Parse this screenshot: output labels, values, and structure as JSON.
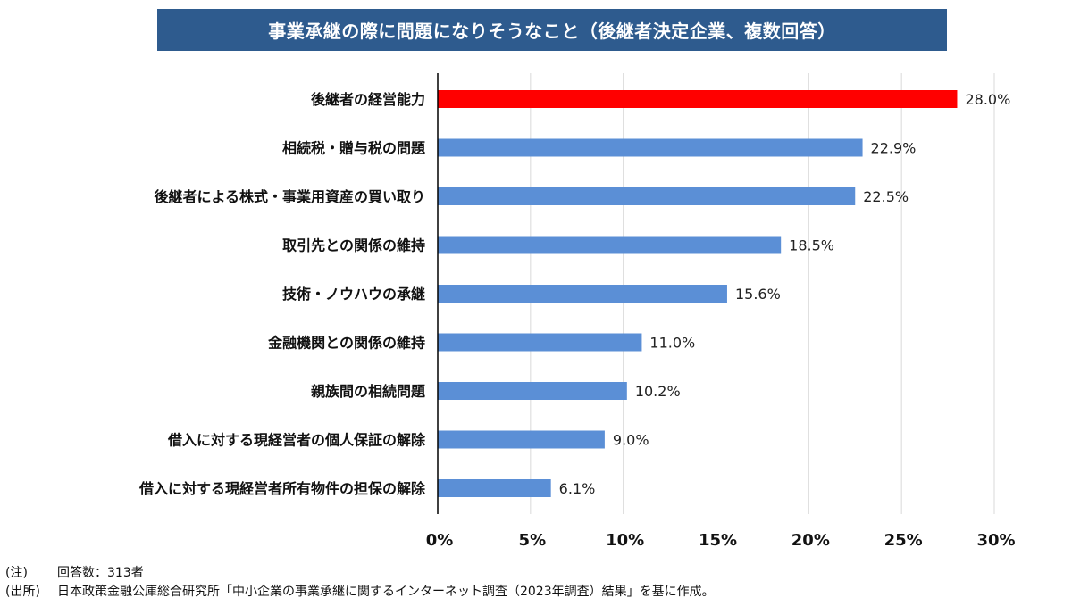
{
  "chart_data": {
    "type": "bar",
    "orientation": "horizontal",
    "title": "事業承継の際に問題になりそうなこと（後継者決定企業、複数回答）",
    "categories": [
      "後継者の経営能力",
      "相続税・贈与税の問題",
      "後継者による株式・事業用資産の買い取り",
      "取引先との関係の維持",
      "技術・ノウハウの承継",
      "金融機関との関係の維持",
      "親族間の相続問題",
      "借入に対する現経営者の個人保証の解除",
      "借入に対する現経営者所有物件の担保の解除"
    ],
    "values": [
      28.0,
      22.9,
      22.5,
      18.5,
      15.6,
      11.0,
      10.2,
      9.0,
      6.1
    ],
    "value_labels": [
      "28.0%",
      "22.9%",
      "22.5%",
      "18.5%",
      "15.6%",
      "11.0%",
      "10.2%",
      "9.0%",
      "6.1%"
    ],
    "highlight_index": 0,
    "xlim": [
      0,
      30
    ],
    "x_ticks": [
      0,
      5,
      10,
      15,
      20,
      25,
      30
    ],
    "x_tick_labels": [
      "0%",
      "5%",
      "10%",
      "15%",
      "20%",
      "25%",
      "30%"
    ],
    "grid": "vertical",
    "colors": {
      "bar": "#5b8fd6",
      "highlight_bar": "#ff0000",
      "highlight_label": "#ff0000",
      "grid": "#d9d9d9",
      "axis": "#000000",
      "title_bg": "#2e5b8e"
    }
  },
  "notes": [
    {
      "prefix": "(注)",
      "text": "回答数：313者"
    },
    {
      "prefix": "(出所)",
      "text": "日本政策金融公庫総合研究所「中小企業の事業承継に関するインターネット調査（2023年調査）結果」を基に作成。"
    }
  ]
}
